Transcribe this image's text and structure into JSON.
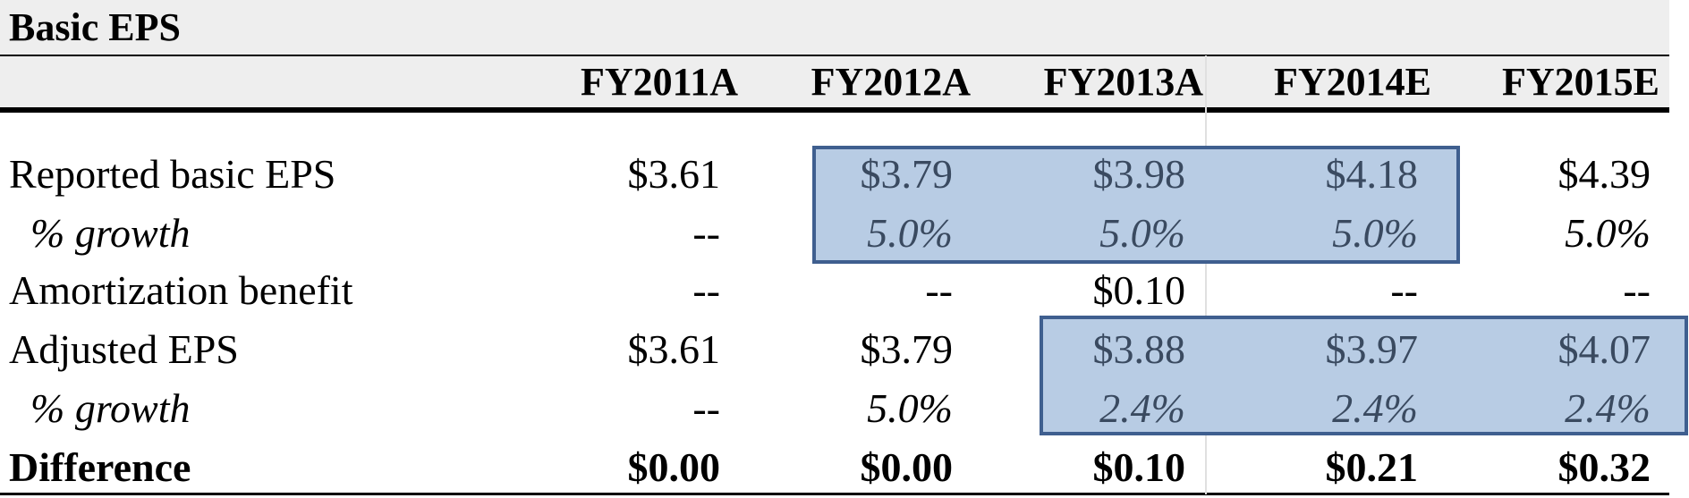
{
  "title": "Basic EPS",
  "columns": [
    "FY2011A",
    "FY2012A",
    "FY2013A",
    "FY2014E",
    "FY2015E"
  ],
  "rows": {
    "reported": {
      "label": "Reported basic EPS",
      "values": [
        "$3.61",
        "$3.79",
        "$3.98",
        "$4.18",
        "$4.39"
      ]
    },
    "reported_growth": {
      "label": "% growth",
      "values": [
        "--",
        "5.0%",
        "5.0%",
        "5.0%",
        "5.0%"
      ]
    },
    "amortization": {
      "label": "Amortization benefit",
      "values": [
        "--",
        "--",
        "$0.10",
        "--",
        "--"
      ]
    },
    "adjusted": {
      "label": "Adjusted EPS",
      "values": [
        "$3.61",
        "$3.79",
        "$3.88",
        "$3.97",
        "$4.07"
      ]
    },
    "adjusted_growth": {
      "label": "% growth",
      "values": [
        "--",
        "5.0%",
        "2.4%",
        "2.4%",
        "2.4%"
      ]
    },
    "difference": {
      "label": "Difference",
      "values": [
        "$0.00",
        "$0.00",
        "$0.10",
        "$0.21",
        "$0.32"
      ]
    }
  },
  "colors": {
    "highlight_fill": "#b8cce4",
    "highlight_border": "#3f5f8f",
    "band": "#eeeeee"
  }
}
